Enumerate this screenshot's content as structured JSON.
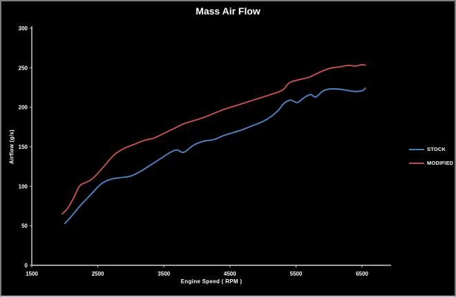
{
  "window": {
    "background": "#000000",
    "border_color": "#7f7f7f",
    "axis_color": "#d9d9d9",
    "text_color": "#ffffff"
  },
  "chart_data": {
    "type": "line",
    "title": "Mass Air Flow",
    "xlabel": "Engine Speed ( RPM )",
    "ylabel": "Airflow (g/s)",
    "xlim": [
      1500,
      7000
    ],
    "ylim": [
      0,
      300
    ],
    "x_ticks": [
      1500,
      2500,
      3500,
      4500,
      5500,
      6500
    ],
    "y_ticks": [
      0,
      50,
      100,
      150,
      200,
      250,
      300
    ],
    "grid": false,
    "legend_position": "right",
    "series": [
      {
        "name": "STOCK",
        "color": "#4f81bd",
        "x": [
          2000,
          2100,
          2250,
          2400,
          2550,
          2700,
          2850,
          3000,
          3150,
          3300,
          3450,
          3600,
          3700,
          3800,
          3950,
          4100,
          4250,
          4400,
          4550,
          4700,
          4850,
          5000,
          5150,
          5250,
          5320,
          5420,
          5520,
          5620,
          5720,
          5800,
          5900,
          6000,
          6150,
          6300,
          6400,
          6500,
          6550
        ],
        "values": [
          53,
          62,
          77,
          90,
          103,
          109,
          111,
          113,
          119,
          127,
          135,
          143,
          146,
          143,
          152,
          157,
          159,
          164,
          168,
          172,
          177,
          182,
          190,
          198,
          205,
          209,
          206,
          212,
          216,
          213,
          220,
          223,
          223,
          221,
          220,
          221,
          224
        ]
      },
      {
        "name": "MODIFIED",
        "color": "#c0504d",
        "x": [
          1960,
          2050,
          2150,
          2230,
          2350,
          2450,
          2600,
          2750,
          2900,
          3050,
          3200,
          3350,
          3500,
          3650,
          3800,
          3950,
          4100,
          4250,
          4400,
          4550,
          4700,
          4850,
          5000,
          5150,
          5300,
          5400,
          5550,
          5700,
          5850,
          6000,
          6150,
          6300,
          6400,
          6500,
          6550
        ],
        "values": [
          65,
          73,
          88,
          101,
          106,
          112,
          126,
          140,
          148,
          153,
          158,
          161,
          167,
          173,
          179,
          183,
          187,
          192,
          197,
          201,
          205,
          209,
          213,
          217,
          222,
          231,
          235,
          238,
          244,
          249,
          251,
          253,
          252,
          254,
          253
        ]
      }
    ]
  }
}
